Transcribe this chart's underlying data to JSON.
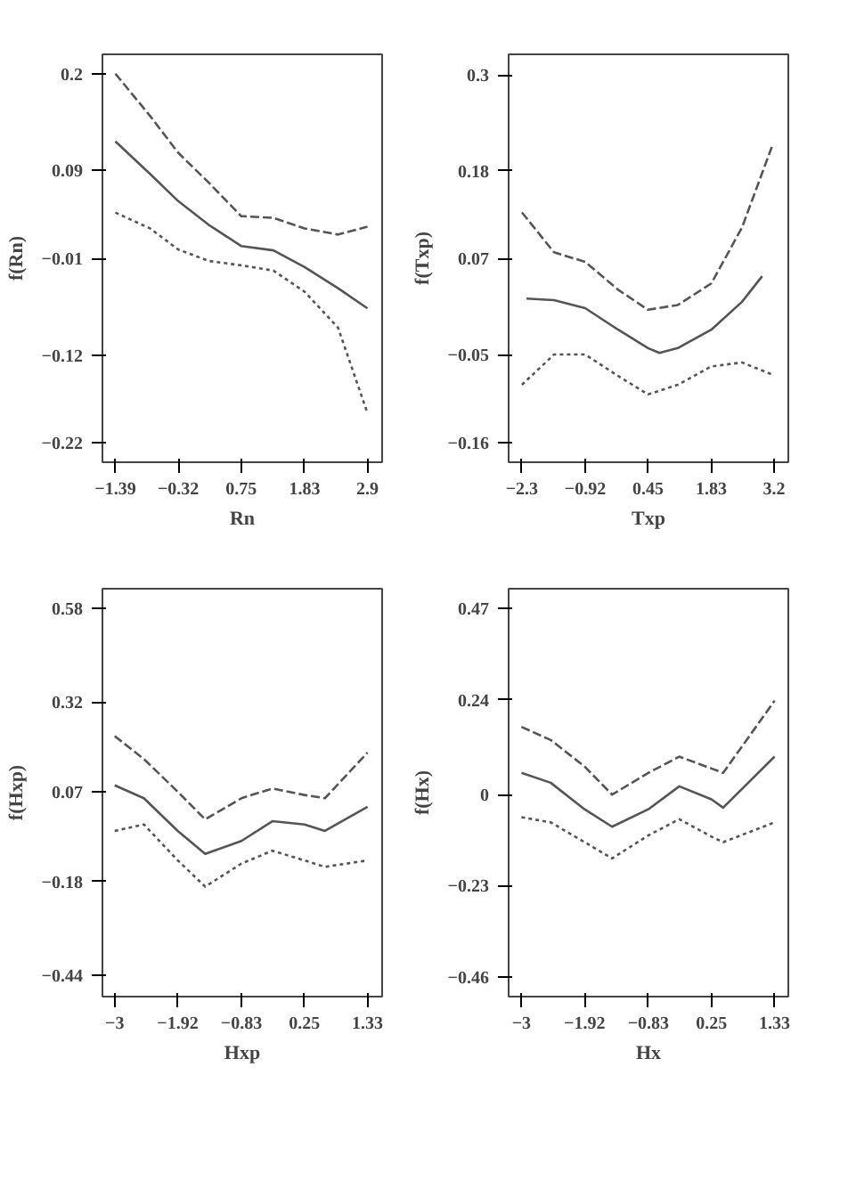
{
  "chart_data": [
    {
      "type": "line",
      "xlabel": "Rn",
      "ylabel": "f(Rn)",
      "xlim": [
        -1.61,
        3.15
      ],
      "ylim": [
        -0.242,
        0.222
      ],
      "xticks": [
        -1.39,
        -0.32,
        0.75,
        1.83,
        2.9
      ],
      "yticks": [
        0.2,
        0.09,
        -0.01,
        -0.12,
        -0.22
      ],
      "grid": false,
      "x": [
        -1.39,
        -0.8,
        -0.32,
        0.2,
        0.75,
        1.3,
        1.83,
        2.4,
        2.9
      ],
      "series": [
        {
          "color": "#555555",
          "line_style": "solid",
          "values": [
            0.123,
            0.086,
            0.055,
            0.028,
            0.004,
            -0.001,
            -0.02,
            -0.044,
            -0.067
          ]
        },
        {
          "color": "#555555",
          "line_style": "dashed",
          "values": [
            0.2,
            0.152,
            0.11,
            0.076,
            0.038,
            0.036,
            0.024,
            0.017,
            0.026
          ]
        },
        {
          "color": "#555555",
          "line_style": "dotted",
          "values": [
            0.042,
            0.024,
            0.0,
            -0.013,
            -0.018,
            -0.024,
            -0.048,
            -0.089,
            -0.186
          ]
        }
      ]
    },
    {
      "type": "line",
      "xlabel": "Txp",
      "ylabel": "f(Txp)",
      "xlim": [
        -2.59,
        3.51
      ],
      "ylim": [
        -0.185,
        0.326
      ],
      "xticks": [
        -2.3,
        -0.92,
        0.45,
        1.83,
        3.2
      ],
      "yticks": [
        0.3,
        0.18,
        0.07,
        -0.05,
        -0.16
      ],
      "grid": false,
      "series": [
        {
          "color": "#555555",
          "line_style": "solid",
          "x": [
            -2.2,
            -1.6,
            -0.92,
            -0.2,
            0.45,
            0.7,
            1.1,
            1.83,
            2.5,
            2.94
          ],
          "values": [
            0.02,
            0.018,
            0.008,
            -0.019,
            -0.042,
            -0.048,
            -0.042,
            -0.019,
            0.016,
            0.048
          ]
        },
        {
          "color": "#555555",
          "line_style": "dashed",
          "x": [
            -2.3,
            -1.6,
            -0.92,
            -0.2,
            0.45,
            1.1,
            1.83,
            2.5,
            3.15
          ],
          "values": [
            0.128,
            0.078,
            0.066,
            0.031,
            0.006,
            0.012,
            0.039,
            0.109,
            0.21
          ]
        },
        {
          "color": "#555555",
          "line_style": "dotted",
          "x": [
            -2.3,
            -1.6,
            -0.92,
            -0.2,
            0.45,
            1.1,
            1.83,
            2.5,
            3.15
          ],
          "values": [
            -0.088,
            -0.05,
            -0.05,
            -0.077,
            -0.1,
            -0.088,
            -0.065,
            -0.06,
            -0.075
          ]
        }
      ]
    },
    {
      "type": "line",
      "xlabel": "Hxp",
      "ylabel": "f(Hxp)",
      "xlim": [
        -3.21,
        1.58
      ],
      "ylim": [
        -0.5,
        0.635
      ],
      "xticks": [
        -3,
        -1.92,
        -0.83,
        0.25,
        1.33
      ],
      "yticks": [
        0.58,
        0.32,
        0.07,
        -0.18,
        -0.44
      ],
      "grid": false,
      "x": [
        -3,
        -2.5,
        -1.92,
        -1.45,
        -0.83,
        -0.3,
        0.25,
        0.6,
        1.33
      ],
      "series": [
        {
          "color": "#555555",
          "line_style": "solid",
          "values": [
            0.088,
            0.052,
            -0.039,
            -0.103,
            -0.067,
            -0.012,
            -0.021,
            -0.039,
            0.028
          ]
        },
        {
          "color": "#555555",
          "line_style": "dashed",
          "values": [
            0.225,
            0.161,
            0.07,
            -0.007,
            0.052,
            0.079,
            0.061,
            0.052,
            0.179
          ]
        },
        {
          "color": "#555555",
          "line_style": "dotted",
          "values": [
            -0.039,
            -0.021,
            -0.121,
            -0.194,
            -0.13,
            -0.094,
            -0.121,
            -0.139,
            -0.121
          ]
        }
      ]
    },
    {
      "type": "line",
      "xlabel": "Hx",
      "ylabel": "f(Hx)",
      "xlim": [
        -3.22,
        1.565
      ],
      "ylim": [
        -0.51,
        0.52
      ],
      "xticks": [
        -3,
        -1.92,
        -0.83,
        0.25,
        1.33
      ],
      "yticks": [
        0.47,
        0.24,
        0,
        -0.23,
        -0.46
      ],
      "grid": false,
      "x": [
        -3,
        -2.5,
        -1.92,
        -1.45,
        -0.83,
        -0.3,
        0.25,
        0.45,
        1.33
      ],
      "series": [
        {
          "color": "#555555",
          "line_style": "solid",
          "values": [
            0.055,
            0.03,
            -0.037,
            -0.081,
            -0.037,
            0.021,
            -0.012,
            -0.033,
            0.096
          ]
        },
        {
          "color": "#555555",
          "line_style": "dashed",
          "values": [
            0.171,
            0.138,
            0.071,
            0.0,
            0.055,
            0.096,
            0.066,
            0.055,
            0.237
          ]
        },
        {
          "color": "#555555",
          "line_style": "dotted",
          "values": [
            -0.057,
            -0.07,
            -0.12,
            -0.161,
            -0.103,
            -0.062,
            -0.106,
            -0.12,
            -0.07
          ]
        }
      ]
    }
  ]
}
